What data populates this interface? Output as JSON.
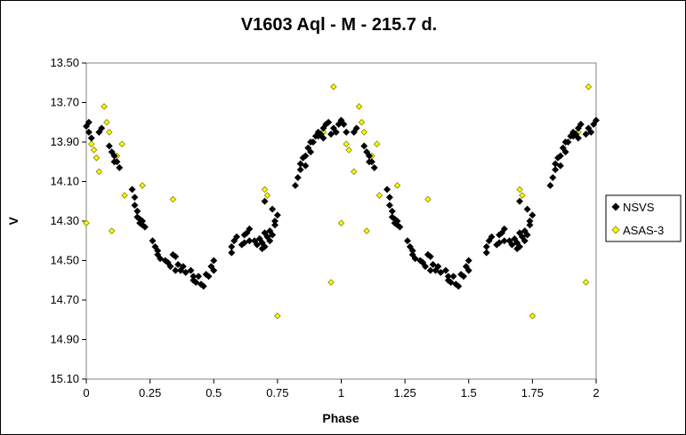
{
  "chart_data": {
    "type": "scatter",
    "title": "V1603 Aql - M - 215.7 d.",
    "xlabel": "Phase",
    "ylabel": "V",
    "xlim": [
      0,
      2
    ],
    "ylim": [
      13.5,
      15.1
    ],
    "y_inverted": true,
    "x_ticks": [
      "0",
      "0.25",
      "0.5",
      "0.75",
      "1",
      "1.25",
      "1.5",
      "1.75",
      "2"
    ],
    "y_ticks": [
      "13.50",
      "13.70",
      "13.90",
      "14.10",
      "14.30",
      "14.50",
      "14.70",
      "14.90",
      "15.10"
    ],
    "grid": false,
    "legend_position": "right",
    "series": [
      {
        "name": "NSVS",
        "color": "#000000",
        "marker": "diamond",
        "points": [
          [
            0.0,
            13.82
          ],
          [
            0.01,
            13.85
          ],
          [
            0.01,
            13.8
          ],
          [
            0.02,
            13.88
          ],
          [
            0.05,
            13.85
          ],
          [
            0.06,
            13.83
          ],
          [
            0.09,
            13.92
          ],
          [
            0.1,
            13.95
          ],
          [
            0.11,
            14.0
          ],
          [
            0.11,
            13.97
          ],
          [
            0.12,
            14.0
          ],
          [
            0.13,
            14.03
          ],
          [
            0.18,
            14.14
          ],
          [
            0.19,
            14.18
          ],
          [
            0.19,
            14.22
          ],
          [
            0.2,
            14.25
          ],
          [
            0.2,
            14.28
          ],
          [
            0.21,
            14.29
          ],
          [
            0.21,
            14.31
          ],
          [
            0.22,
            14.3
          ],
          [
            0.22,
            14.32
          ],
          [
            0.23,
            14.33
          ],
          [
            0.26,
            14.4
          ],
          [
            0.27,
            14.43
          ],
          [
            0.28,
            14.45
          ],
          [
            0.28,
            14.47
          ],
          [
            0.29,
            14.49
          ],
          [
            0.31,
            14.5
          ],
          [
            0.32,
            14.51
          ],
          [
            0.33,
            14.53
          ],
          [
            0.34,
            14.47
          ],
          [
            0.35,
            14.48
          ],
          [
            0.35,
            14.55
          ],
          [
            0.36,
            14.52
          ],
          [
            0.37,
            14.55
          ],
          [
            0.38,
            14.53
          ],
          [
            0.39,
            14.56
          ],
          [
            0.41,
            14.55
          ],
          [
            0.42,
            14.58
          ],
          [
            0.42,
            14.6
          ],
          [
            0.43,
            14.61
          ],
          [
            0.44,
            14.58
          ],
          [
            0.45,
            14.62
          ],
          [
            0.46,
            14.63
          ],
          [
            0.47,
            14.57
          ],
          [
            0.48,
            14.58
          ],
          [
            0.49,
            14.53
          ],
          [
            0.5,
            14.55
          ],
          [
            0.5,
            14.5
          ],
          [
            0.57,
            14.46
          ],
          [
            0.57,
            14.43
          ],
          [
            0.58,
            14.4
          ],
          [
            0.59,
            14.38
          ],
          [
            0.61,
            14.42
          ],
          [
            0.62,
            14.37
          ],
          [
            0.62,
            14.41
          ],
          [
            0.63,
            14.36
          ],
          [
            0.64,
            14.4
          ],
          [
            0.64,
            14.34
          ],
          [
            0.66,
            14.4
          ],
          [
            0.67,
            14.42
          ],
          [
            0.68,
            14.39
          ],
          [
            0.69,
            14.41
          ],
          [
            0.69,
            14.44
          ],
          [
            0.7,
            14.36
          ],
          [
            0.7,
            14.43
          ],
          [
            0.71,
            14.38
          ],
          [
            0.72,
            14.35
          ],
          [
            0.72,
            14.4
          ],
          [
            0.73,
            14.37
          ],
          [
            0.74,
            14.3
          ],
          [
            0.74,
            14.32
          ],
          [
            0.75,
            14.27
          ],
          [
            0.7,
            14.2
          ],
          [
            0.73,
            14.24
          ],
          [
            0.82,
            14.12
          ],
          [
            0.83,
            14.08
          ],
          [
            0.84,
            14.04
          ],
          [
            0.84,
            14.01
          ],
          [
            0.85,
            13.98
          ],
          [
            0.86,
            13.97
          ],
          [
            0.86,
            14.02
          ],
          [
            0.87,
            13.93
          ],
          [
            0.88,
            13.9
          ],
          [
            0.88,
            13.95
          ],
          [
            0.89,
            13.9
          ],
          [
            0.9,
            13.87
          ],
          [
            0.91,
            13.85
          ],
          [
            0.91,
            13.87
          ],
          [
            0.92,
            13.86
          ],
          [
            0.93,
            13.88
          ],
          [
            0.93,
            13.83
          ],
          [
            0.94,
            13.81
          ],
          [
            0.95,
            13.8
          ],
          [
            0.96,
            13.86
          ],
          [
            0.97,
            13.83
          ],
          [
            0.98,
            13.85
          ],
          [
            0.99,
            13.81
          ],
          [
            1.0,
            13.79
          ],
          [
            1.01,
            13.81
          ],
          [
            1.02,
            13.85
          ],
          [
            1.05,
            13.85
          ],
          [
            1.06,
            13.83
          ],
          [
            1.09,
            13.92
          ],
          [
            1.1,
            13.95
          ],
          [
            1.11,
            14.0
          ],
          [
            1.11,
            13.97
          ],
          [
            1.12,
            14.0
          ],
          [
            1.13,
            14.03
          ],
          [
            1.18,
            14.14
          ],
          [
            1.19,
            14.18
          ],
          [
            1.19,
            14.22
          ],
          [
            1.2,
            14.25
          ],
          [
            1.2,
            14.28
          ],
          [
            1.21,
            14.29
          ],
          [
            1.21,
            14.31
          ],
          [
            1.22,
            14.3
          ],
          [
            1.22,
            14.32
          ],
          [
            1.23,
            14.33
          ],
          [
            1.26,
            14.4
          ],
          [
            1.27,
            14.43
          ],
          [
            1.28,
            14.45
          ],
          [
            1.28,
            14.47
          ],
          [
            1.29,
            14.49
          ],
          [
            1.31,
            14.5
          ],
          [
            1.32,
            14.51
          ],
          [
            1.33,
            14.53
          ],
          [
            1.34,
            14.47
          ],
          [
            1.35,
            14.48
          ],
          [
            1.35,
            14.55
          ],
          [
            1.36,
            14.52
          ],
          [
            1.37,
            14.55
          ],
          [
            1.38,
            14.53
          ],
          [
            1.39,
            14.56
          ],
          [
            1.41,
            14.55
          ],
          [
            1.42,
            14.58
          ],
          [
            1.42,
            14.6
          ],
          [
            1.43,
            14.61
          ],
          [
            1.44,
            14.58
          ],
          [
            1.45,
            14.62
          ],
          [
            1.46,
            14.63
          ],
          [
            1.47,
            14.57
          ],
          [
            1.48,
            14.58
          ],
          [
            1.49,
            14.53
          ],
          [
            1.5,
            14.55
          ],
          [
            1.5,
            14.5
          ],
          [
            1.57,
            14.46
          ],
          [
            1.57,
            14.43
          ],
          [
            1.58,
            14.4
          ],
          [
            1.59,
            14.38
          ],
          [
            1.61,
            14.42
          ],
          [
            1.62,
            14.37
          ],
          [
            1.62,
            14.41
          ],
          [
            1.63,
            14.36
          ],
          [
            1.64,
            14.4
          ],
          [
            1.64,
            14.34
          ],
          [
            1.66,
            14.4
          ],
          [
            1.67,
            14.42
          ],
          [
            1.68,
            14.39
          ],
          [
            1.69,
            14.41
          ],
          [
            1.69,
            14.44
          ],
          [
            1.7,
            14.36
          ],
          [
            1.7,
            14.43
          ],
          [
            1.71,
            14.38
          ],
          [
            1.72,
            14.35
          ],
          [
            1.72,
            14.4
          ],
          [
            1.73,
            14.37
          ],
          [
            1.74,
            14.3
          ],
          [
            1.74,
            14.32
          ],
          [
            1.75,
            14.27
          ],
          [
            1.7,
            14.2
          ],
          [
            1.73,
            14.24
          ],
          [
            1.82,
            14.12
          ],
          [
            1.83,
            14.08
          ],
          [
            1.84,
            14.04
          ],
          [
            1.84,
            14.01
          ],
          [
            1.85,
            13.98
          ],
          [
            1.86,
            13.97
          ],
          [
            1.86,
            14.02
          ],
          [
            1.87,
            13.93
          ],
          [
            1.88,
            13.9
          ],
          [
            1.88,
            13.95
          ],
          [
            1.89,
            13.9
          ],
          [
            1.9,
            13.87
          ],
          [
            1.91,
            13.85
          ],
          [
            1.91,
            13.87
          ],
          [
            1.92,
            13.86
          ],
          [
            1.93,
            13.88
          ],
          [
            1.93,
            13.83
          ],
          [
            1.94,
            13.81
          ],
          [
            1.96,
            13.86
          ],
          [
            1.97,
            13.83
          ],
          [
            1.98,
            13.85
          ],
          [
            1.99,
            13.81
          ],
          [
            2.0,
            13.79
          ]
        ]
      },
      {
        "name": "ASAS-3",
        "color": "#ffff00",
        "marker": "diamond",
        "points": [
          [
            0.0,
            14.31
          ],
          [
            0.02,
            13.91
          ],
          [
            0.03,
            13.94
          ],
          [
            0.04,
            13.98
          ],
          [
            0.05,
            14.05
          ],
          [
            0.05,
            13.85
          ],
          [
            0.07,
            13.72
          ],
          [
            0.08,
            13.8
          ],
          [
            0.09,
            13.85
          ],
          [
            0.1,
            14.35
          ],
          [
            0.12,
            13.97
          ],
          [
            0.14,
            13.91
          ],
          [
            0.15,
            14.17
          ],
          [
            0.22,
            14.12
          ],
          [
            0.34,
            14.19
          ],
          [
            0.7,
            14.14
          ],
          [
            0.71,
            14.17
          ],
          [
            0.75,
            14.78
          ],
          [
            0.93,
            13.85
          ],
          [
            0.96,
            14.61
          ],
          [
            0.97,
            13.62
          ],
          [
            1.0,
            14.31
          ],
          [
            1.02,
            13.91
          ],
          [
            1.03,
            13.94
          ],
          [
            1.05,
            14.05
          ],
          [
            1.05,
            13.85
          ],
          [
            1.07,
            13.72
          ],
          [
            1.08,
            13.8
          ],
          [
            1.09,
            13.85
          ],
          [
            1.1,
            14.35
          ],
          [
            1.12,
            13.97
          ],
          [
            1.14,
            13.91
          ],
          [
            1.15,
            14.17
          ],
          [
            1.22,
            14.12
          ],
          [
            1.34,
            14.19
          ],
          [
            1.7,
            14.14
          ],
          [
            1.71,
            14.17
          ],
          [
            1.75,
            14.78
          ],
          [
            1.93,
            13.85
          ],
          [
            1.96,
            14.61
          ],
          [
            1.97,
            13.62
          ]
        ]
      }
    ]
  }
}
